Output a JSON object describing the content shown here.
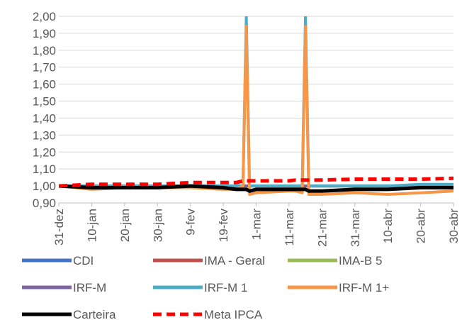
{
  "chart_data": {
    "type": "line",
    "ylim": [
      0.9,
      2.0
    ],
    "y_ticks": [
      "0,90",
      "1,00",
      "1,10",
      "1,20",
      "1,30",
      "1,40",
      "1,50",
      "1,60",
      "1,70",
      "1,80",
      "1,90",
      "2,00"
    ],
    "y_tick_values": [
      0.9,
      1.0,
      1.1,
      1.2,
      1.3,
      1.4,
      1.5,
      1.6,
      1.7,
      1.8,
      1.9,
      2.0
    ],
    "x_ticks": [
      "31-dez",
      "10-jan",
      "20-jan",
      "30-jan",
      "9-fev",
      "19-fev",
      "1-mar",
      "11-mar",
      "21-mar",
      "31-mar",
      "10-abr",
      "20-abr",
      "30-abr"
    ],
    "grid": "horizontal",
    "legend_position": "bottom",
    "x_index": [
      0,
      10,
      20,
      30,
      40,
      50,
      54,
      56,
      57,
      58,
      60,
      70,
      72,
      74,
      75,
      76,
      78,
      80,
      90,
      100,
      110,
      120
    ],
    "series": [
      {
        "name": "CDI",
        "color": "#4472C4",
        "style": "solid",
        "values": [
          1.0,
          1.0,
          1.0,
          1.0,
          1.0,
          1.0,
          1.0,
          1.0,
          1.0,
          1.0,
          1.0,
          1.0,
          1.0,
          1.0,
          1.0,
          1.0,
          1.0,
          1.0,
          1.0,
          1.0,
          1.0,
          1.0
        ]
      },
      {
        "name": "IMA - Geral",
        "color": "#C0504D",
        "style": "solid",
        "values": [
          1.0,
          1.0,
          1.0,
          1.0,
          1.0,
          1.0,
          1.0,
          1.0,
          1.0,
          1.0,
          1.0,
          1.0,
          1.0,
          1.0,
          1.0,
          1.0,
          1.0,
          1.0,
          1.0,
          1.0,
          1.0,
          1.0
        ]
      },
      {
        "name": "IMA-B 5",
        "color": "#9BBB59",
        "style": "solid",
        "values": [
          1.0,
          1.0,
          1.0,
          1.0,
          1.0,
          1.0,
          1.0,
          1.0,
          1.0,
          1.0,
          1.0,
          1.0,
          1.0,
          1.0,
          1.0,
          1.0,
          1.0,
          1.0,
          1.0,
          1.0,
          1.0,
          1.0
        ]
      },
      {
        "name": "IRF-M",
        "color": "#8064A2",
        "style": "solid",
        "values": [
          1.0,
          1.0,
          1.0,
          1.0,
          1.0,
          1.0,
          1.0,
          1.0,
          1.0,
          1.0,
          1.0,
          1.0,
          1.0,
          1.0,
          1.0,
          1.0,
          1.0,
          1.0,
          1.0,
          1.0,
          1.0,
          1.0
        ]
      },
      {
        "name": "IRF-M 1",
        "color": "#4BACC6",
        "style": "solid",
        "values": [
          1.0,
          1.0,
          1.0,
          1.0,
          1.0,
          1.0,
          1.0,
          1.0,
          2.0,
          1.0,
          1.0,
          1.0,
          1.0,
          1.0,
          2.0,
          1.0,
          1.0,
          1.0,
          1.0,
          1.0,
          1.01,
          1.01
        ]
      },
      {
        "name": "IRF-M 1+",
        "color": "#F79646",
        "style": "solid",
        "values": [
          1.0,
          0.98,
          0.99,
          0.99,
          0.99,
          0.98,
          0.98,
          1.0,
          1.94,
          0.95,
          0.96,
          0.97,
          0.97,
          0.96,
          1.94,
          0.95,
          0.95,
          0.95,
          0.96,
          0.95,
          0.96,
          0.97
        ]
      },
      {
        "name": "Carteira",
        "color": "#000000",
        "style": "solid",
        "values": [
          1.0,
          0.99,
          0.99,
          0.99,
          1.0,
          0.99,
          0.98,
          0.98,
          0.98,
          0.97,
          0.98,
          0.98,
          0.98,
          0.98,
          0.98,
          0.97,
          0.97,
          0.97,
          0.98,
          0.98,
          0.99,
          0.99
        ]
      },
      {
        "name": "Meta IPCA",
        "color": "#FF0000",
        "style": "dashed",
        "values": [
          1.0,
          1.01,
          1.01,
          1.01,
          1.02,
          1.02,
          1.02,
          1.03,
          1.03,
          1.03,
          1.03,
          1.03,
          1.035,
          1.035,
          1.035,
          1.035,
          1.035,
          1.035,
          1.04,
          1.04,
          1.04,
          1.045
        ]
      }
    ]
  }
}
